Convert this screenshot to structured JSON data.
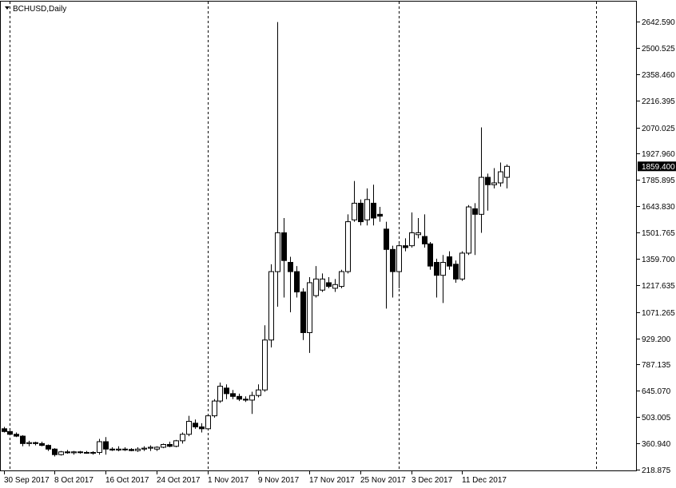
{
  "chart_data": {
    "type": "candlestick",
    "title": "BCHUSD,Daily",
    "categories": [
      "30 Sep 2017",
      null,
      null,
      null,
      null,
      null,
      null,
      null,
      "8 Oct 2017",
      null,
      null,
      null,
      null,
      null,
      null,
      null,
      "16 Oct 2017",
      null,
      null,
      null,
      null,
      null,
      null,
      null,
      "24 Oct 2017",
      null,
      null,
      null,
      null,
      null,
      null,
      null,
      "1 Nov 2017",
      null,
      null,
      null,
      null,
      null,
      null,
      null,
      "9 Nov 2017",
      null,
      null,
      null,
      null,
      null,
      null,
      null,
      "17 Nov 2017",
      null,
      null,
      null,
      null,
      null,
      null,
      null,
      "25 Nov 2017",
      null,
      null,
      null,
      null,
      null,
      null,
      null,
      "3 Dec 2017",
      null,
      null,
      null,
      null,
      null,
      null,
      null,
      "11 Dec 2017",
      null,
      null,
      null,
      null,
      null,
      null,
      null
    ],
    "open": [
      440,
      425,
      410,
      400,
      360,
      365,
      360,
      350,
      330,
      300,
      315,
      310,
      315,
      312,
      310,
      312,
      370,
      330,
      325,
      330,
      328,
      322,
      330,
      335,
      330,
      340,
      355,
      345,
      375,
      410,
      470,
      450,
      440,
      510,
      590,
      660,
      630,
      615,
      600,
      595,
      620,
      650,
      920,
      1290,
      1500,
      1340,
      1290,
      1180,
      960,
      1160,
      1190,
      1230,
      1200,
      1210,
      1290,
      1570,
      1660,
      1570,
      1660,
      1600,
      1520,
      1410,
      1290,
      1430,
      1430,
      1490,
      1480,
      1440,
      1340,
      1270,
      1370,
      1330,
      1250,
      1390,
      1630,
      1600,
      1800,
      1760,
      1770,
      1800
    ],
    "high": [
      450,
      430,
      420,
      405,
      375,
      370,
      370,
      355,
      335,
      320,
      325,
      320,
      320,
      320,
      318,
      385,
      395,
      340,
      345,
      340,
      335,
      340,
      345,
      350,
      345,
      360,
      370,
      380,
      420,
      510,
      490,
      470,
      520,
      600,
      690,
      680,
      650,
      630,
      615,
      640,
      680,
      1000,
      1330,
      2640,
      1580,
      1370,
      1320,
      1200,
      1260,
      1320,
      1280,
      1260,
      1250,
      1300,
      1600,
      1780,
      1680,
      1740,
      1760,
      1640,
      1560,
      1430,
      1440,
      1470,
      1610,
      1580,
      1600,
      1450,
      1360,
      1380,
      1400,
      1350,
      1400,
      1650,
      1660,
      2070,
      1820,
      1850,
      1880,
      1870
    ],
    "low": [
      420,
      405,
      395,
      345,
      345,
      350,
      345,
      320,
      290,
      295,
      305,
      300,
      305,
      305,
      300,
      300,
      300,
      320,
      318,
      320,
      318,
      315,
      320,
      320,
      320,
      335,
      340,
      340,
      360,
      400,
      440,
      420,
      430,
      500,
      580,
      600,
      600,
      590,
      585,
      520,
      610,
      640,
      880,
      1100,
      1150,
      1070,
      1150,
      920,
      850,
      1150,
      1180,
      1200,
      1180,
      1200,
      1280,
      1560,
      1540,
      1540,
      1540,
      1560,
      1090,
      1150,
      1200,
      1400,
      1420,
      1470,
      1420,
      1300,
      1150,
      1120,
      1300,
      1230,
      1240,
      1380,
      1380,
      1500,
      1620,
      1740,
      1750,
      1740
    ],
    "close": [
      425,
      410,
      400,
      360,
      365,
      360,
      350,
      330,
      300,
      315,
      310,
      315,
      312,
      310,
      312,
      370,
      330,
      325,
      330,
      328,
      322,
      330,
      335,
      340,
      340,
      355,
      345,
      375,
      410,
      480,
      450,
      440,
      510,
      590,
      670,
      630,
      615,
      600,
      595,
      620,
      650,
      920,
      1290,
      1500,
      1350,
      1290,
      1180,
      960,
      1230,
      1250,
      1250,
      1210,
      1220,
      1290,
      1560,
      1660,
      1560,
      1680,
      1580,
      1590,
      1410,
      1290,
      1430,
      1420,
      1500,
      1500,
      1440,
      1320,
      1270,
      1340,
      1320,
      1250,
      1390,
      1640,
      1600,
      1800,
      1760,
      1770,
      1830,
      1859.4
    ],
    "up_color": "#ffffff",
    "down_color": "#000000",
    "ylim": [
      210.23,
      2750.6
    ],
    "yticks": [
      {
        "value": 218.875,
        "label": "218.875"
      },
      {
        "value": 360.94,
        "label": "360.940"
      },
      {
        "value": 503.005,
        "label": "503.005"
      },
      {
        "value": 645.07,
        "label": "645.070"
      },
      {
        "value": 787.135,
        "label": "787.135"
      },
      {
        "value": 929.2,
        "label": "929.200"
      },
      {
        "value": 1071.265,
        "label": "1071.265"
      },
      {
        "value": 1217.635,
        "label": "1217.635"
      },
      {
        "value": 1359.7,
        "label": "1359.700"
      },
      {
        "value": 1501.765,
        "label": "1501.765"
      },
      {
        "value": 1643.83,
        "label": "1643.830"
      },
      {
        "value": 1785.895,
        "label": "1785.895"
      },
      {
        "value": 1927.96,
        "label": "1927.960"
      },
      {
        "value": 2070.025,
        "label": "2070.025"
      },
      {
        "value": 2216.395,
        "label": "2216.395"
      },
      {
        "value": 2358.46,
        "label": "2358.460"
      },
      {
        "value": 2500.525,
        "label": "2500.525"
      },
      {
        "value": 2642.59,
        "label": "2642.590"
      }
    ],
    "current_price": {
      "value": 1859.4,
      "label": "1859.400"
    }
  }
}
